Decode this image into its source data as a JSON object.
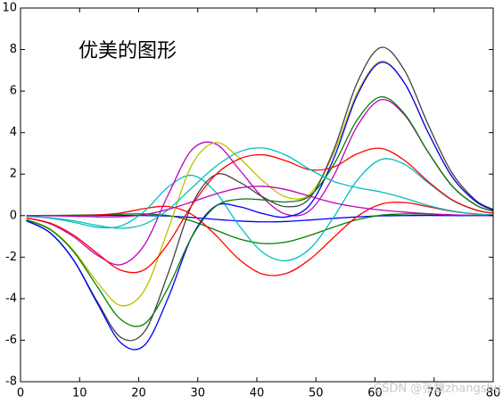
{
  "chart_data": {
    "type": "line",
    "annotation": "优美的图形",
    "watermark": "CSDN @张魏zhangshu",
    "x": [
      1,
      5,
      9,
      13,
      17,
      21,
      25,
      29,
      33,
      37,
      41,
      45,
      49,
      53,
      57,
      61,
      65,
      69,
      73,
      77,
      80
    ],
    "series": [
      {
        "color": "#0000ff",
        "values": [
          0,
          0,
          0,
          0.01,
          0.01,
          0,
          -0.02,
          -0.09,
          -0.18,
          -0.26,
          -0.3,
          -0.28,
          -0.21,
          -0.13,
          -0.06,
          -0.01,
          0,
          0.01,
          0,
          0,
          0
        ]
      },
      {
        "color": "#008000",
        "values": [
          0,
          0.01,
          0.02,
          0.04,
          0.07,
          0.08,
          0,
          -0.26,
          -0.69,
          -1.12,
          -1.34,
          -1.27,
          -0.95,
          -0.55,
          -0.19,
          0.02,
          0.08,
          0.07,
          0.03,
          0.01,
          0.01
        ]
      },
      {
        "color": "#ff0000",
        "values": [
          0,
          0,
          0,
          0.03,
          0.13,
          0.34,
          0.44,
          0.06,
          -0.93,
          -2.11,
          -2.82,
          -2.78,
          -2.1,
          -1.05,
          -0.04,
          0.55,
          0.63,
          0.43,
          0.21,
          0.08,
          0.03
        ]
      },
      {
        "color": "#00bfbf",
        "values": [
          -0.03,
          -0.12,
          -0.32,
          -0.56,
          -0.5,
          0.22,
          1.38,
          1.94,
          1.14,
          -0.48,
          -1.77,
          -2.17,
          -1.59,
          -0.08,
          1.71,
          2.7,
          2.47,
          1.58,
          0.75,
          0.27,
          0.11
        ]
      },
      {
        "color": "#bf00bf",
        "values": [
          -0.11,
          -0.39,
          -1.02,
          -1.91,
          -2.36,
          -1.4,
          1.01,
          3.17,
          3.46,
          2.23,
          0.87,
          0.06,
          0.25,
          1.92,
          4.32,
          5.58,
          4.85,
          3.05,
          1.44,
          0.52,
          0.21
        ]
      },
      {
        "color": "#bfbf00",
        "values": [
          -0.19,
          -0.64,
          -1.68,
          -3.21,
          -4.33,
          -3.58,
          -0.65,
          2.44,
          3.52,
          2.78,
          1.68,
          0.89,
          1.05,
          3,
          5.93,
          7.43,
          6.39,
          4,
          1.89,
          0.69,
          0.27
        ]
      },
      {
        "color": "#404040",
        "values": [
          -0.24,
          -0.82,
          -2.14,
          -4.15,
          -5.87,
          -5.58,
          -2.77,
          0.52,
          1.97,
          1.62,
          0.9,
          0.43,
          0.86,
          3.15,
          6.42,
          8.1,
          6.99,
          4.38,
          2.07,
          0.75,
          0.3
        ]
      },
      {
        "color": "#0000ff",
        "values": [
          -0.25,
          -0.83,
          -2.16,
          -4.22,
          -6.13,
          -6.24,
          -3.95,
          -1.01,
          0.46,
          0.43,
          0.1,
          -0.06,
          0.53,
          2.74,
          5.81,
          7.38,
          6.38,
          4,
          1.89,
          0.69,
          0.27
        ]
      },
      {
        "color": "#008000",
        "values": [
          -0.2,
          -0.67,
          -1.74,
          -3.42,
          -5.01,
          -5.21,
          -3.46,
          -1.02,
          0.44,
          0.79,
          0.76,
          0.66,
          0.96,
          2.45,
          4.62,
          5.72,
          4.9,
          3.06,
          1.45,
          0.52,
          0.21
        ]
      },
      {
        "color": "#ff0000",
        "values": [
          -0.11,
          -0.36,
          -0.94,
          -1.82,
          -2.63,
          -2.6,
          -1.34,
          0.5,
          1.96,
          2.73,
          2.93,
          2.63,
          2.21,
          2.34,
          2.98,
          3.24,
          2.66,
          1.64,
          0.77,
          0.28,
          0.11
        ]
      },
      {
        "color": "#00bfbf",
        "values": [
          -0.03,
          -0.1,
          -0.25,
          -0.47,
          -0.61,
          -0.41,
          0.29,
          1.34,
          2.36,
          3.07,
          3.26,
          2.9,
          2.22,
          1.65,
          1.35,
          1.14,
          0.84,
          0.49,
          0.23,
          0.08,
          0.03
        ]
      },
      {
        "color": "#bf00bf",
        "values": [
          0,
          -0.01,
          -0.03,
          -0.06,
          -0.05,
          0.05,
          0.3,
          0.66,
          1.04,
          1.33,
          1.41,
          1.25,
          0.93,
          0.62,
          0.41,
          0.27,
          0.17,
          0.09,
          0.04,
          0.01,
          0.01
        ]
      }
    ],
    "xlim": [
      0,
      80
    ],
    "xticks": [
      0,
      10,
      20,
      30,
      40,
      50,
      60,
      70,
      80
    ],
    "ylim": [
      -8,
      10
    ],
    "yticks": [
      -8,
      -6,
      -4,
      -2,
      0,
      2,
      4,
      6,
      8,
      10
    ],
    "grid": false
  }
}
